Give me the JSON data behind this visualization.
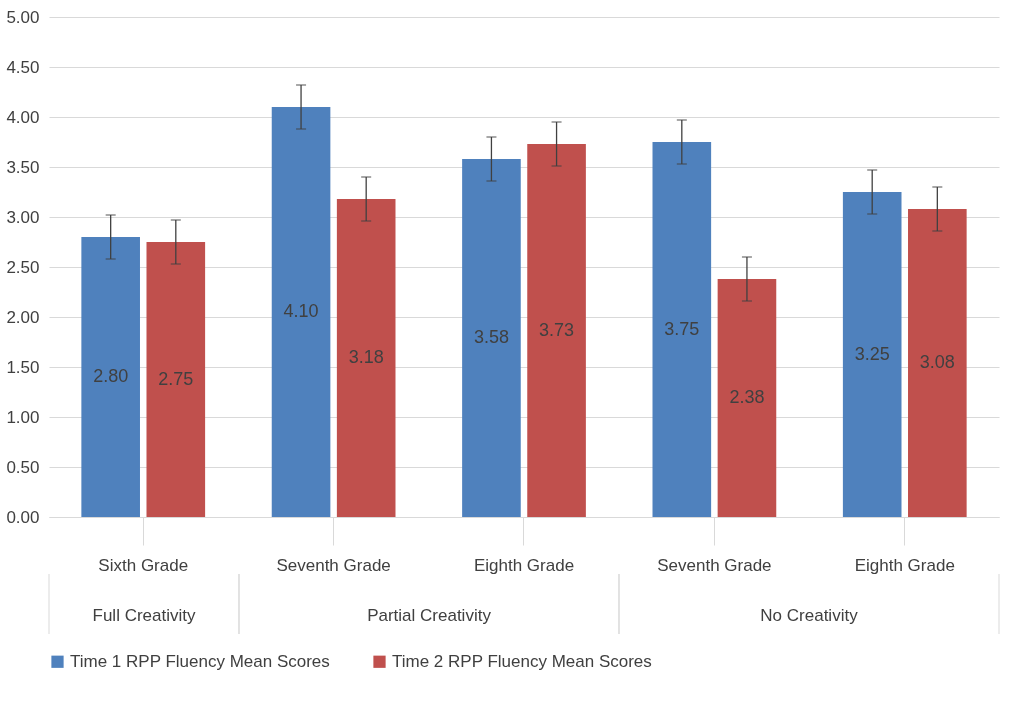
{
  "chart_data": {
    "type": "bar",
    "categories": [
      "Sixth Grade",
      "Seventh Grade",
      "Eighth Grade",
      "Seventh Grade",
      "Eighth Grade"
    ],
    "series": [
      {
        "name": "Time 1 RPP Fluency Mean Scores",
        "color": "#4f81bd",
        "values": [
          2.8,
          4.1,
          3.58,
          3.75,
          3.25
        ],
        "errors": [
          0.22,
          0.22,
          0.22,
          0.22,
          0.22
        ],
        "value_labels": [
          "2.80",
          "4.10",
          "3.58",
          "3.75",
          "3.25"
        ]
      },
      {
        "name": "Time 2 RPP Fluency Mean Scores",
        "color": "#c0504d",
        "values": [
          2.75,
          3.18,
          3.73,
          2.38,
          3.08
        ],
        "errors": [
          0.22,
          0.22,
          0.22,
          0.22,
          0.22
        ],
        "value_labels": [
          "2.75",
          "3.18",
          "3.73",
          "2.38",
          "3.08"
        ]
      }
    ],
    "annotations": [
      "Full Creativity",
      "Partial Creativity",
      "No Creativity"
    ],
    "ylim": [
      0,
      5
    ],
    "yticks": [
      {
        "value": 0,
        "label": "0.00"
      },
      {
        "value": 0.5,
        "label": "0.50"
      },
      {
        "value": 1,
        "label": "1.00"
      },
      {
        "value": 1.5,
        "label": "1.50"
      },
      {
        "value": 2,
        "label": "2.00"
      },
      {
        "value": 2.5,
        "label": "2.50"
      },
      {
        "value": 3,
        "label": "3.00"
      },
      {
        "value": 3.5,
        "label": "3.50"
      },
      {
        "value": 4,
        "label": "4.00"
      },
      {
        "value": 4.5,
        "label": "4.50"
      },
      {
        "value": 5,
        "label": "5.00"
      }
    ],
    "grid": "y",
    "legend": "bottom"
  }
}
